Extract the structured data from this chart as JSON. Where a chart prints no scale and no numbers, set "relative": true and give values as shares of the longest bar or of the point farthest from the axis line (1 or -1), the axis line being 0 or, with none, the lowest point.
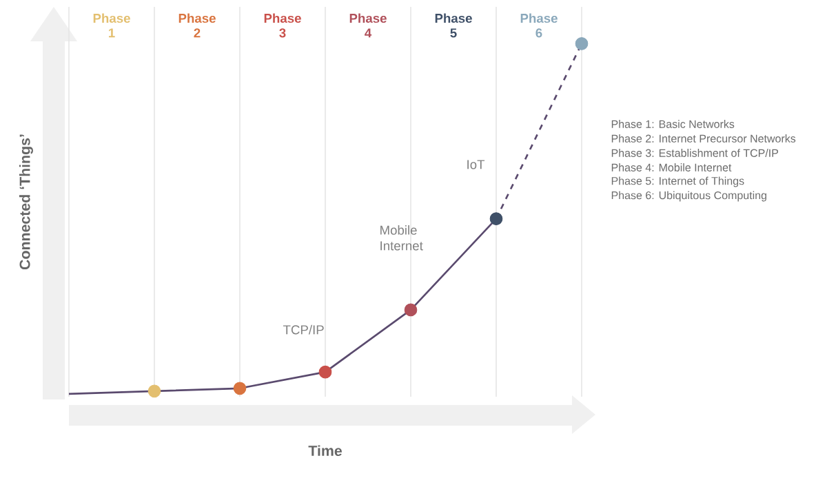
{
  "chart_data": {
    "type": "line",
    "relative": true,
    "xlabel": "Time",
    "ylabel": "Connected ‘Things’",
    "categories": [
      null,
      null,
      null,
      null,
      null,
      null,
      null
    ],
    "grid": "x",
    "series": [
      {
        "values": [
          0,
          0.008,
          0.016,
          0.0625,
          0.24,
          0.5,
          null
        ],
        "color": "#5a4a6e",
        "line_style": "solid",
        "marker": "circle",
        "colors": [
          null,
          "#e3bf6f",
          "#d9743f",
          "#c9504a",
          "#b0505a",
          "#3f5068",
          null
        ]
      },
      {
        "values": [
          null,
          null,
          null,
          null,
          null,
          0.5,
          1
        ],
        "color": "#5a4a6e",
        "line_style": "dashed",
        "marker": "circle",
        "colors": [
          null,
          null,
          null,
          null,
          null,
          null,
          "#8aa8bb"
        ]
      }
    ],
    "annotations": [
      "Phase 1",
      "Phase 2",
      "Phase 3",
      "Phase 4",
      "Phase 5",
      "Phase 6",
      "TCP/IP",
      "Mobile Internet",
      "IoT",
      "Phase 1: Basic Networks",
      "Phase 2: Internet Precursor Networks",
      "Phase 3: Establishment of TCP/IP",
      "Phase 4: Mobile Internet",
      "Phase 5: Internet of Things",
      "Phase 6: Ubiquitous Computing"
    ]
  }
}
